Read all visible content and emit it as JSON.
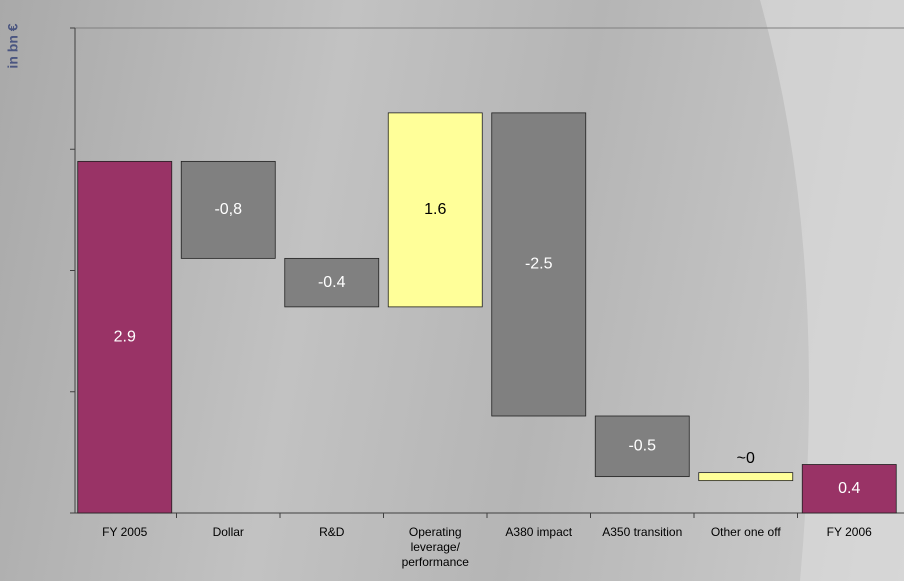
{
  "chart_data": {
    "type": "waterfall",
    "y_label": "in bn €",
    "categories": [
      "FY 2005",
      "Dollar",
      "R&D",
      "Operating leverage/ performance",
      "A380 impact",
      "A350 transition",
      "Other one off",
      "FY 2006"
    ],
    "values": [
      2.9,
      -0.8,
      -0.4,
      1.6,
      -2.5,
      -0.5,
      0,
      0.4
    ],
    "value_labels": [
      "2.9",
      "-0,8",
      "-0.4",
      "1.6",
      "-2.5",
      "-0.5",
      "~0",
      "0.4"
    ],
    "measure": [
      "absolute",
      "relative",
      "relative",
      "relative",
      "relative",
      "relative",
      "relative",
      "absolute"
    ],
    "colors": [
      "#993366",
      "#808080",
      "#808080",
      "#ffff99",
      "#808080",
      "#808080",
      "#ffff99",
      "#993366"
    ],
    "ylim": [
      0,
      4
    ],
    "yticks": [
      0,
      1,
      2,
      3,
      4
    ]
  }
}
